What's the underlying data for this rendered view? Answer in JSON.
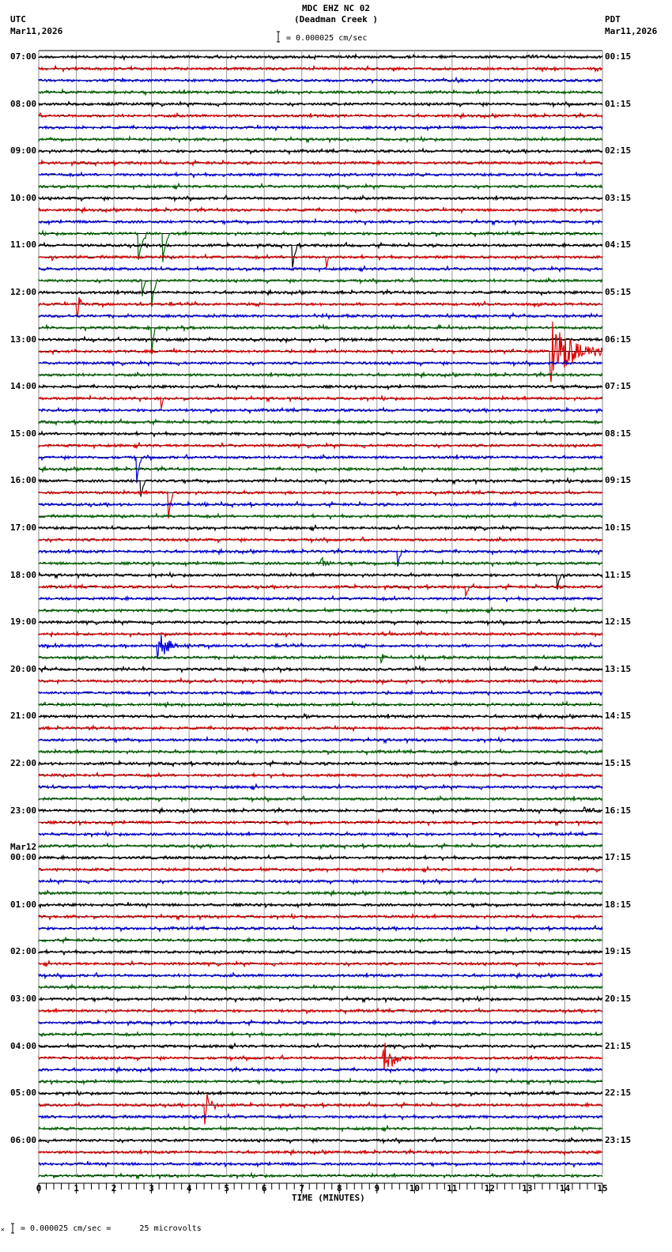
{
  "header": {
    "station": "MDC EHZ NC 02",
    "site": "(Deadman Creek )",
    "left_tz": "UTC",
    "left_date": "Mar11,2026",
    "right_tz": "PDT",
    "right_date": "Mar11,2026",
    "scale_text": "= 0.000025 cm/sec"
  },
  "footer": {
    "scale_text": "= 0.000025 cm/sec =      25 microvolts",
    "prefix": "✕"
  },
  "chart_data": {
    "type": "line",
    "title": "MDC EHZ NC 02 (Deadman Creek )",
    "xlabel": "TIME (MINUTES)",
    "ylabel": "",
    "xlim": [
      0,
      15
    ],
    "x_ticks": [
      "0",
      "1",
      "2",
      "3",
      "4",
      "5",
      "6",
      "7",
      "8",
      "9",
      "10",
      "11",
      "12",
      "13",
      "14",
      "15"
    ],
    "grid": true,
    "traces_per_hour": 4,
    "trace_count": 96,
    "trace_colors": [
      "#000000",
      "#dd0000",
      "#0000dd",
      "#006600"
    ],
    "left_hour_labels": [
      "07:00",
      "08:00",
      "09:00",
      "10:00",
      "11:00",
      "12:00",
      "13:00",
      "14:00",
      "15:00",
      "16:00",
      "17:00",
      "18:00",
      "19:00",
      "20:00",
      "21:00",
      "22:00",
      "23:00",
      "00:00",
      "01:00",
      "02:00",
      "03:00",
      "04:00",
      "05:00",
      "06:00"
    ],
    "left_date_change": {
      "index": 17,
      "label": "Mar12"
    },
    "right_hour_labels": [
      "00:15",
      "01:15",
      "02:15",
      "03:15",
      "04:15",
      "05:15",
      "06:15",
      "07:15",
      "08:15",
      "09:15",
      "10:15",
      "11:15",
      "12:15",
      "13:15",
      "14:15",
      "15:15",
      "16:15",
      "17:15",
      "18:15",
      "19:15",
      "20:15",
      "21:15",
      "22:15",
      "23:15"
    ],
    "events": [
      {
        "trace": 15,
        "minute": 2.65,
        "amp": 55,
        "span": 10,
        "kind": "spike",
        "color_note": "green tall pulse"
      },
      {
        "trace": 15,
        "minute": 3.3,
        "amp": 60,
        "span": 8,
        "kind": "spike"
      },
      {
        "trace": 19,
        "minute": 2.75,
        "amp": 40,
        "span": 4,
        "kind": "spike"
      },
      {
        "trace": 19,
        "minute": 3.0,
        "amp": 60,
        "span": 6,
        "kind": "spike"
      },
      {
        "trace": 23,
        "minute": 3.0,
        "amp": 70,
        "span": 4,
        "kind": "spike"
      },
      {
        "trace": 16,
        "minute": 6.75,
        "amp": 50,
        "span": 6,
        "kind": "spike"
      },
      {
        "trace": 17,
        "minute": 7.65,
        "amp": 30,
        "span": 3,
        "kind": "spike"
      },
      {
        "trace": 17,
        "minute": 0.35,
        "amp": 12,
        "span": 2,
        "kind": "spike"
      },
      {
        "trace": 21,
        "minute": 1.0,
        "amp": 30,
        "span": 5,
        "kind": "quake"
      },
      {
        "trace": 25,
        "minute": 13.6,
        "amp": 45,
        "span": 40,
        "kind": "quake"
      },
      {
        "trace": 29,
        "minute": 3.25,
        "amp": 25,
        "span": 4,
        "kind": "spike"
      },
      {
        "trace": 34,
        "minute": 2.6,
        "amp": 60,
        "span": 6,
        "kind": "spike"
      },
      {
        "trace": 36,
        "minute": 2.7,
        "amp": 45,
        "span": 6,
        "kind": "spike"
      },
      {
        "trace": 37,
        "minute": 3.45,
        "amp": 55,
        "span": 6,
        "kind": "spike"
      },
      {
        "trace": 38,
        "minute": 4.4,
        "amp": 3,
        "span": 8,
        "kind": "quake"
      },
      {
        "trace": 42,
        "minute": 9.55,
        "amp": 30,
        "span": 5,
        "kind": "spike"
      },
      {
        "trace": 43,
        "minute": 7.5,
        "amp": 14,
        "span": 8,
        "kind": "quake"
      },
      {
        "trace": 44,
        "minute": 13.8,
        "amp": 30,
        "span": 5,
        "kind": "spike"
      },
      {
        "trace": 45,
        "minute": 11.35,
        "amp": 25,
        "span": 5,
        "kind": "spike"
      },
      {
        "trace": 45,
        "minute": 10.5,
        "amp": 6,
        "span": 2,
        "kind": "spike"
      },
      {
        "trace": 49,
        "minute": 0.3,
        "amp": 8,
        "span": 5,
        "kind": "quake"
      },
      {
        "trace": 50,
        "minute": 3.1,
        "amp": 28,
        "span": 18,
        "kind": "quake"
      },
      {
        "trace": 51,
        "minute": 9.1,
        "amp": 9,
        "span": 8,
        "kind": "quake"
      },
      {
        "trace": 53,
        "minute": 7.5,
        "amp": 8,
        "span": 2,
        "kind": "spike"
      },
      {
        "trace": 56,
        "minute": 7.05,
        "amp": 9,
        "span": 5,
        "kind": "quake"
      },
      {
        "trace": 64,
        "minute": 13.65,
        "amp": 6,
        "span": 4,
        "kind": "quake"
      },
      {
        "trace": 64,
        "minute": 14.5,
        "amp": 8,
        "span": 12,
        "kind": "quake"
      },
      {
        "trace": 66,
        "minute": 9.8,
        "amp": 6,
        "span": 2,
        "kind": "spike"
      },
      {
        "trace": 67,
        "minute": 4.3,
        "amp": 7,
        "span": 2,
        "kind": "spike"
      },
      {
        "trace": 67,
        "minute": 10.1,
        "amp": 6,
        "span": 2,
        "kind": "spike"
      },
      {
        "trace": 85,
        "minute": 9.15,
        "amp": 28,
        "span": 18,
        "kind": "quake"
      },
      {
        "trace": 89,
        "minute": 4.4,
        "amp": 30,
        "span": 10,
        "kind": "quake"
      }
    ]
  }
}
